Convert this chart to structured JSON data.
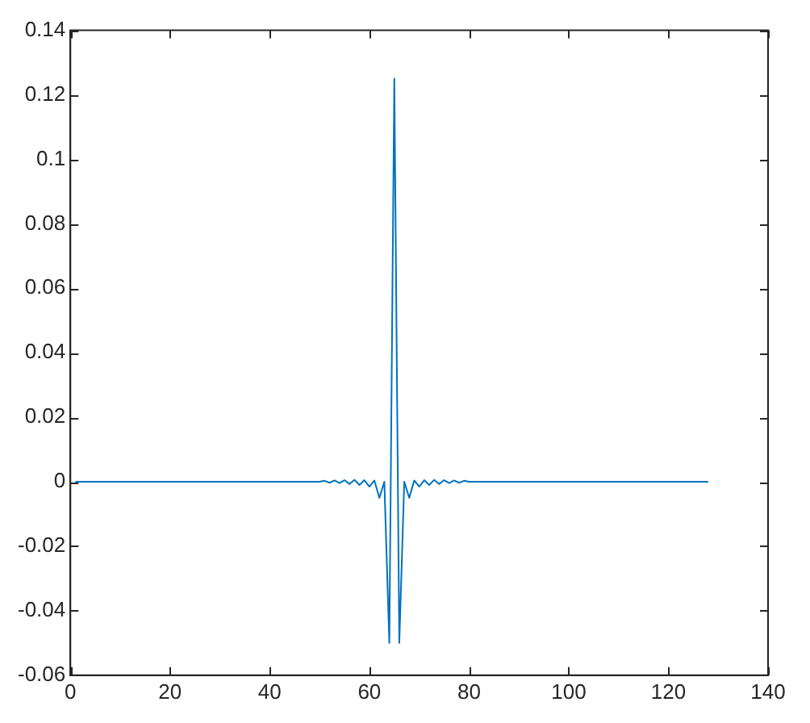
{
  "chart_data": {
    "type": "line",
    "grid": false,
    "legend": false,
    "marker": "none",
    "line_style": "solid",
    "xlim": [
      0,
      140
    ],
    "xticks": [
      0,
      20,
      40,
      60,
      80,
      100,
      120,
      140
    ],
    "ylim": [
      -0.06,
      0.14
    ],
    "yticks": [
      -0.06,
      -0.04,
      -0.02,
      0,
      0.02,
      0.04,
      0.06,
      0.08,
      0.1,
      0.12,
      0.14
    ],
    "x": [
      1,
      50,
      51,
      52,
      53,
      54,
      55,
      56,
      57,
      58,
      59,
      60,
      61,
      62,
      63,
      64,
      65,
      66,
      67,
      68,
      69,
      70,
      71,
      72,
      73,
      74,
      75,
      76,
      77,
      78,
      79,
      80,
      128
    ],
    "series": [
      {
        "color": "#0072bd",
        "values": [
          0,
          0,
          0.0003,
          -0.0003,
          0.0004,
          -0.0004,
          0.0005,
          -0.0007,
          0.0006,
          -0.001,
          0.0005,
          -0.0015,
          0.0004,
          -0.005,
          0,
          -0.05,
          0.125,
          -0.05,
          0,
          -0.005,
          0.0004,
          -0.0015,
          0.0005,
          -0.001,
          0.0006,
          -0.0007,
          0.0005,
          -0.0004,
          0.0004,
          -0.0003,
          0.0003,
          0,
          0
        ]
      }
    ]
  }
}
